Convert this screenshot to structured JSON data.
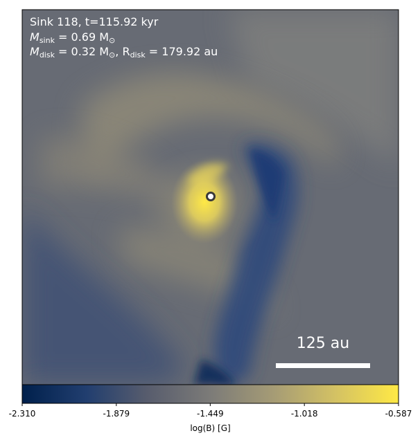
{
  "annotation": {
    "line1": "Sink 118, t=115.92 kyr",
    "line2_prefix": "M",
    "line2_sub": "sink",
    "line2_rest": " = 0.69 M",
    "line2_sun": "⊙",
    "line3_prefix": "M",
    "line3_sub": "disk",
    "line3_mid": " = 0.32 M",
    "line3_sun": "⊙",
    "line3_sep": ", R",
    "line3_rsub": "disk",
    "line3_rest": " = 179.92 au"
  },
  "scale_bar": {
    "label": "125 au"
  },
  "colorbar": {
    "label": "log(B) [G]",
    "min": -2.31,
    "max": -0.587,
    "ticks": [
      "-2.310",
      "-1.879",
      "-1.449",
      "-1.018",
      "-0.587"
    ],
    "colors": [
      "#00204c",
      "#213e6f",
      "#575c6d",
      "#7c7b78",
      "#a69c75",
      "#d3c164",
      "#ffe945"
    ]
  },
  "sink_marker": {
    "symbol": "sink-circle"
  }
}
